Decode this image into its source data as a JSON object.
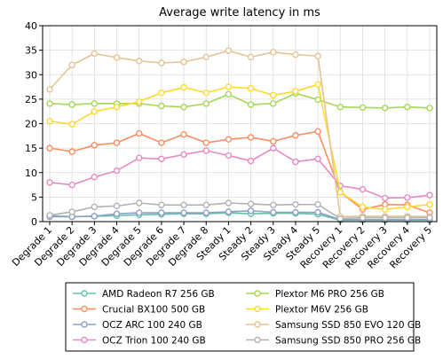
{
  "chart_data": {
    "type": "line",
    "title": "Average write latency in ms",
    "xlabel": "",
    "ylabel": "",
    "ylim": [
      0,
      40
    ],
    "yticks": [
      0,
      5,
      10,
      15,
      20,
      25,
      30,
      35,
      40
    ],
    "grid": true,
    "legend_position": "bottom",
    "categories": [
      "Degrade 1",
      "Degrade 2",
      "Degrade 3",
      "Degrade 4",
      "Degrade 5",
      "Degrade 6",
      "Degrade 7",
      "Degrade 8",
      "Steady 1",
      "Steady 2",
      "Steady 3",
      "Steady 4",
      "Steady 5",
      "Recovery 1",
      "Recovery 2",
      "Recovery 3",
      "Recovery 4",
      "Recovery 5"
    ],
    "series": [
      {
        "name": "AMD Radeon R7 256 GB",
        "color": "#66c2a5",
        "values": [
          1.2,
          1.0,
          1.1,
          1.2,
          1.4,
          1.5,
          1.6,
          1.6,
          1.8,
          1.6,
          1.7,
          1.7,
          1.5,
          0.3,
          0.3,
          0.3,
          0.3,
          0.3
        ]
      },
      {
        "name": "Crucial BX100 500 GB",
        "color": "#fc8d62",
        "values": [
          15.0,
          14.3,
          15.6,
          16.1,
          18.0,
          16.1,
          17.8,
          16.1,
          16.8,
          17.2,
          16.4,
          17.6,
          18.4,
          6.0,
          2.5,
          3.5,
          3.4,
          1.8
        ]
      },
      {
        "name": "OCZ ARC 100 240 GB",
        "color": "#8da0cb",
        "values": [
          1.0,
          1.0,
          1.1,
          1.6,
          1.8,
          1.8,
          1.8,
          1.8,
          2.0,
          2.2,
          1.9,
          1.9,
          1.9,
          0.4,
          0.4,
          0.4,
          0.4,
          0.4
        ]
      },
      {
        "name": "OCZ Trion 100 240 GB",
        "color": "#e78ac3",
        "values": [
          8.0,
          7.5,
          9.1,
          10.4,
          13.0,
          12.8,
          13.7,
          14.5,
          13.5,
          12.4,
          15.0,
          12.2,
          12.8,
          7.3,
          6.6,
          4.8,
          4.9,
          5.4
        ]
      },
      {
        "name": "Plextor M6 PRO 256 GB",
        "color": "#a6d854",
        "values": [
          24.1,
          23.9,
          24.1,
          24.1,
          24.1,
          23.6,
          23.4,
          24.1,
          26.0,
          23.9,
          24.1,
          26.2,
          24.9,
          23.4,
          23.3,
          23.2,
          23.4,
          23.2
        ]
      },
      {
        "name": "Plextor M6V 256 GB",
        "color": "#ffd92f",
        "values": [
          20.5,
          19.9,
          22.5,
          23.4,
          24.5,
          26.3,
          27.4,
          26.3,
          27.5,
          27.2,
          25.8,
          26.6,
          28.0,
          6.0,
          3.0,
          2.5,
          3.0,
          3.5
        ]
      },
      {
        "name": "Samsung SSD 850 EVO 120 GB",
        "color": "#e5c494",
        "values": [
          27.0,
          32.0,
          34.3,
          33.5,
          32.8,
          32.4,
          32.6,
          33.6,
          34.9,
          33.6,
          34.6,
          34.1,
          33.8,
          1.0,
          1.1,
          1.1,
          1.1,
          1.0
        ]
      },
      {
        "name": "Samsung SSD 850 PRO 256 GB",
        "color": "#b3b3b3",
        "values": [
          1.3,
          2.0,
          3.0,
          3.2,
          3.8,
          3.4,
          3.4,
          3.4,
          3.8,
          3.6,
          3.4,
          3.5,
          3.5,
          0.6,
          0.8,
          0.8,
          0.8,
          0.8
        ]
      }
    ]
  }
}
